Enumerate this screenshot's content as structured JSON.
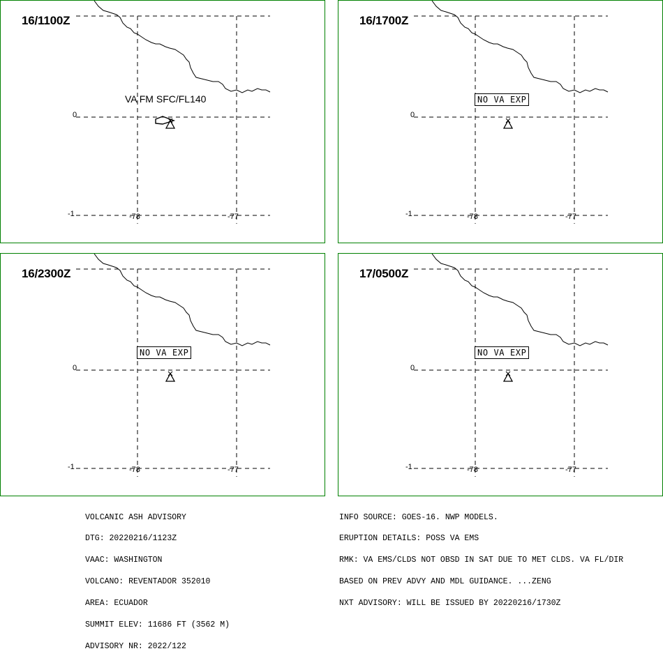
{
  "panels": [
    {
      "time": "16/1100Z",
      "label": "VA FM SFC/FL140",
      "boxed": false,
      "ash": true
    },
    {
      "time": "16/1700Z",
      "label": "NO VA EXP",
      "boxed": true,
      "ash": false
    },
    {
      "time": "16/2300Z",
      "label": "NO VA EXP",
      "boxed": true,
      "ash": false
    },
    {
      "time": "17/0500Z",
      "label": "NO VA EXP",
      "boxed": true,
      "ash": false
    }
  ],
  "axes": {
    "lat_labels": [
      "0",
      "-1"
    ],
    "lon_labels": [
      "-78",
      "-77"
    ]
  },
  "colors": {
    "panel_border": "#008000",
    "lines": "#000000"
  },
  "advisory": {
    "lines": [
      "VOLCANIC ASH ADVISORY",
      "DTG: 20220216/1123Z",
      "VAAC: WASHINGTON",
      "VOLCANO: REVENTADOR 352010",
      "AREA: ECUADOR",
      "SUMMIT ELEV: 11686 FT (3562 M)",
      "ADVISORY NR: 2022/122"
    ]
  },
  "details": {
    "lines": [
      "INFO SOURCE: GOES-16. NWP MODELS.",
      "ERUPTION DETAILS: POSS VA EMS",
      "RMK: VA EMS/CLDS NOT OBSD IN SAT DUE TO MET CLDS. VA FL/DIR",
      "BASED ON PREV ADVY AND MDL GUIDANCE. ...ZENG",
      "NXT ADVISORY: WILL BE ISSUED BY 20220216/1730Z"
    ]
  }
}
